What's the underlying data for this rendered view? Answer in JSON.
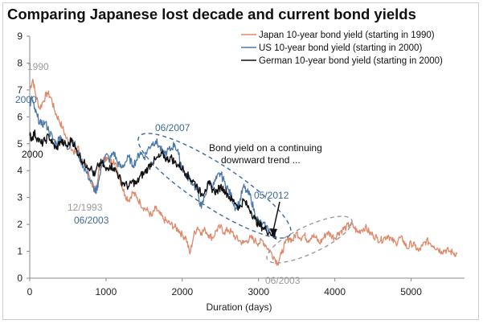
{
  "chart_data": {
    "type": "line",
    "title": "Comparing Japanese lost decade and current bond yields",
    "xlabel": "Duration (days)",
    "ylabel": "",
    "xlim": [
      0,
      5700
    ],
    "ylim": [
      0,
      9
    ],
    "x_ticks": [
      0,
      1000,
      2000,
      3000,
      4000,
      5000
    ],
    "y_ticks": [
      0,
      1,
      2,
      3,
      4,
      5,
      6,
      7,
      8,
      9
    ],
    "colors": {
      "japan": "#e0896a",
      "us": "#4a78aa",
      "german": "#111111",
      "annotation_blue": "#3e6a9a",
      "annotation_gray": "#9a9a9a"
    },
    "series": [
      {
        "name": "Japan 10-year bond yield  (starting in 1990)",
        "key": "japan",
        "points": [
          [
            0,
            7.0
          ],
          [
            40,
            7.4
          ],
          [
            80,
            6.8
          ],
          [
            130,
            6.3
          ],
          [
            180,
            6.6
          ],
          [
            230,
            6.9
          ],
          [
            280,
            6.7
          ],
          [
            330,
            6.2
          ],
          [
            380,
            5.9
          ],
          [
            430,
            5.6
          ],
          [
            480,
            5.2
          ],
          [
            530,
            5.0
          ],
          [
            580,
            4.6
          ],
          [
            630,
            4.9
          ],
          [
            680,
            4.4
          ],
          [
            730,
            4.2
          ],
          [
            780,
            3.8
          ],
          [
            830,
            3.4
          ],
          [
            880,
            3.3
          ],
          [
            900,
            3.9
          ],
          [
            950,
            4.3
          ],
          [
            1000,
            4.5
          ],
          [
            1050,
            4.3
          ],
          [
            1100,
            4.4
          ],
          [
            1150,
            4.0
          ],
          [
            1200,
            3.5
          ],
          [
            1250,
            3.1
          ],
          [
            1300,
            2.9
          ],
          [
            1350,
            3.2
          ],
          [
            1400,
            3.0
          ],
          [
            1450,
            2.8
          ],
          [
            1500,
            2.6
          ],
          [
            1550,
            2.5
          ],
          [
            1600,
            2.3
          ],
          [
            1650,
            2.6
          ],
          [
            1700,
            2.4
          ],
          [
            1750,
            2.2
          ],
          [
            1800,
            2.1
          ],
          [
            1850,
            2.0
          ],
          [
            1900,
            1.9
          ],
          [
            1950,
            1.8
          ],
          [
            2000,
            1.6
          ],
          [
            2050,
            1.5
          ],
          [
            2100,
            0.9
          ],
          [
            2150,
            1.6
          ],
          [
            2200,
            1.9
          ],
          [
            2250,
            1.7
          ],
          [
            2300,
            1.8
          ],
          [
            2350,
            1.6
          ],
          [
            2400,
            1.5
          ],
          [
            2450,
            1.8
          ],
          [
            2500,
            1.9
          ],
          [
            2550,
            1.7
          ],
          [
            2600,
            1.8
          ],
          [
            2650,
            1.7
          ],
          [
            2700,
            1.5
          ],
          [
            2750,
            1.4
          ],
          [
            2800,
            1.3
          ],
          [
            2850,
            1.4
          ],
          [
            2900,
            1.5
          ],
          [
            2950,
            1.4
          ],
          [
            3000,
            1.3
          ],
          [
            3050,
            1.4
          ],
          [
            3100,
            1.2
          ],
          [
            3150,
            1.0
          ],
          [
            3200,
            0.8
          ],
          [
            3250,
            0.55
          ],
          [
            3300,
            0.9
          ],
          [
            3350,
            1.3
          ],
          [
            3400,
            1.5
          ],
          [
            3450,
            1.4
          ],
          [
            3500,
            1.7
          ],
          [
            3550,
            1.5
          ],
          [
            3600,
            1.6
          ],
          [
            3650,
            1.4
          ],
          [
            3700,
            1.6
          ],
          [
            3750,
            1.5
          ],
          [
            3800,
            1.3
          ],
          [
            3850,
            1.5
          ],
          [
            3900,
            1.7
          ],
          [
            3950,
            1.6
          ],
          [
            4000,
            1.5
          ],
          [
            4050,
            1.7
          ],
          [
            4100,
            1.8
          ],
          [
            4150,
            1.9
          ],
          [
            4200,
            2.0
          ],
          [
            4250,
            1.9
          ],
          [
            4300,
            1.7
          ],
          [
            4350,
            1.8
          ],
          [
            4400,
            1.9
          ],
          [
            4450,
            1.7
          ],
          [
            4500,
            1.6
          ],
          [
            4550,
            1.5
          ],
          [
            4600,
            1.4
          ],
          [
            4650,
            1.5
          ],
          [
            4700,
            1.6
          ],
          [
            4750,
            1.4
          ],
          [
            4800,
            1.3
          ],
          [
            4850,
            1.5
          ],
          [
            4900,
            1.4
          ],
          [
            4950,
            1.1
          ],
          [
            5000,
            1.3
          ],
          [
            5050,
            1.2
          ],
          [
            5100,
            1.0
          ],
          [
            5150,
            1.2
          ],
          [
            5200,
            1.4
          ],
          [
            5250,
            1.3
          ],
          [
            5300,
            1.2
          ],
          [
            5350,
            1.1
          ],
          [
            5400,
            1.0
          ],
          [
            5450,
            1.05
          ],
          [
            5500,
            1.0
          ],
          [
            5550,
            0.95
          ],
          [
            5600,
            0.9
          ]
        ]
      },
      {
        "name": "US 10-year bond yield  (starting in 2000)",
        "key": "us",
        "points": [
          [
            0,
            6.4
          ],
          [
            30,
            6.7
          ],
          [
            60,
            6.3
          ],
          [
            100,
            6.0
          ],
          [
            150,
            5.7
          ],
          [
            200,
            5.8
          ],
          [
            250,
            5.5
          ],
          [
            300,
            5.2
          ],
          [
            350,
            5.0
          ],
          [
            400,
            5.3
          ],
          [
            450,
            5.0
          ],
          [
            500,
            4.8
          ],
          [
            550,
            5.2
          ],
          [
            600,
            4.9
          ],
          [
            650,
            4.5
          ],
          [
            700,
            4.2
          ],
          [
            750,
            3.9
          ],
          [
            800,
            3.6
          ],
          [
            850,
            3.3
          ],
          [
            870,
            3.15
          ],
          [
            900,
            3.6
          ],
          [
            950,
            4.2
          ],
          [
            1000,
            4.6
          ],
          [
            1050,
            4.4
          ],
          [
            1100,
            4.7
          ],
          [
            1150,
            4.3
          ],
          [
            1200,
            4.1
          ],
          [
            1250,
            4.3
          ],
          [
            1300,
            4.5
          ],
          [
            1350,
            4.2
          ],
          [
            1400,
            4.4
          ],
          [
            1450,
            4.7
          ],
          [
            1500,
            4.5
          ],
          [
            1550,
            4.8
          ],
          [
            1600,
            5.0
          ],
          [
            1650,
            5.1
          ],
          [
            1700,
            4.9
          ],
          [
            1750,
            4.6
          ],
          [
            1800,
            4.7
          ],
          [
            1850,
            4.8
          ],
          [
            1900,
            5.0
          ],
          [
            1950,
            4.6
          ],
          [
            2000,
            4.1
          ],
          [
            2050,
            3.8
          ],
          [
            2100,
            3.7
          ],
          [
            2150,
            3.5
          ],
          [
            2200,
            3.2
          ],
          [
            2250,
            2.6
          ],
          [
            2300,
            3.1
          ],
          [
            2350,
            3.6
          ],
          [
            2400,
            3.4
          ],
          [
            2450,
            3.7
          ],
          [
            2500,
            3.9
          ],
          [
            2550,
            3.6
          ],
          [
            2600,
            3.3
          ],
          [
            2650,
            3.0
          ],
          [
            2700,
            2.6
          ],
          [
            2750,
            2.8
          ],
          [
            2800,
            3.4
          ],
          [
            2850,
            3.2
          ],
          [
            2900,
            3.0
          ],
          [
            2950,
            2.4
          ],
          [
            3000,
            2.1
          ],
          [
            3050,
            2.0
          ],
          [
            3100,
            1.9
          ],
          [
            3150,
            1.8
          ],
          [
            3200,
            1.6
          ],
          [
            3230,
            1.75
          ]
        ]
      },
      {
        "name": "German 10-year bond yield  (starting in 2000)",
        "key": "german",
        "points": [
          [
            0,
            5.3
          ],
          [
            30,
            5.2
          ],
          [
            60,
            5.4
          ],
          [
            100,
            5.2
          ],
          [
            150,
            5.0
          ],
          [
            200,
            5.1
          ],
          [
            250,
            5.3
          ],
          [
            300,
            5.0
          ],
          [
            350,
            4.8
          ],
          [
            400,
            5.1
          ],
          [
            450,
            5.0
          ],
          [
            500,
            4.9
          ],
          [
            550,
            5.2
          ],
          [
            600,
            4.8
          ],
          [
            650,
            4.6
          ],
          [
            700,
            4.3
          ],
          [
            750,
            4.2
          ],
          [
            800,
            4.1
          ],
          [
            850,
            3.8
          ],
          [
            900,
            4.2
          ],
          [
            950,
            4.3
          ],
          [
            1000,
            4.0
          ],
          [
            1050,
            4.2
          ],
          [
            1100,
            4.1
          ],
          [
            1150,
            3.9
          ],
          [
            1200,
            3.6
          ],
          [
            1250,
            3.5
          ],
          [
            1300,
            3.4
          ],
          [
            1350,
            3.6
          ],
          [
            1400,
            3.5
          ],
          [
            1450,
            3.8
          ],
          [
            1500,
            3.9
          ],
          [
            1550,
            4.1
          ],
          [
            1600,
            4.3
          ],
          [
            1650,
            4.4
          ],
          [
            1700,
            4.5
          ],
          [
            1750,
            4.6
          ],
          [
            1800,
            4.4
          ],
          [
            1850,
            4.5
          ],
          [
            1900,
            4.3
          ],
          [
            1950,
            4.2
          ],
          [
            2000,
            4.1
          ],
          [
            2050,
            3.9
          ],
          [
            2100,
            3.7
          ],
          [
            2150,
            3.6
          ],
          [
            2200,
            3.4
          ],
          [
            2250,
            3.1
          ],
          [
            2300,
            3.3
          ],
          [
            2350,
            3.5
          ],
          [
            2400,
            3.3
          ],
          [
            2450,
            3.2
          ],
          [
            2500,
            3.4
          ],
          [
            2550,
            3.3
          ],
          [
            2600,
            3.1
          ],
          [
            2650,
            2.9
          ],
          [
            2700,
            2.8
          ],
          [
            2750,
            2.6
          ],
          [
            2800,
            2.9
          ],
          [
            2850,
            2.7
          ],
          [
            2900,
            2.5
          ],
          [
            2950,
            2.2
          ],
          [
            3000,
            2.0
          ],
          [
            3050,
            1.9
          ],
          [
            3100,
            1.8
          ],
          [
            3150,
            1.7
          ],
          [
            3200,
            1.6
          ],
          [
            3230,
            1.55
          ]
        ]
      }
    ],
    "annotations": [
      {
        "text": "1990",
        "color": "gray"
      },
      {
        "text": "2000",
        "color": "blue"
      },
      {
        "text": "2000",
        "color": "black"
      },
      {
        "text": "06/2007",
        "color": "blue"
      },
      {
        "text": "12/1993",
        "color": "gray"
      },
      {
        "text": "06/2003",
        "color": "blue"
      },
      {
        "text": "05/2012",
        "color": "blue"
      },
      {
        "text": "06/2003",
        "color": "gray"
      },
      {
        "text": "Bond yield on a continuing",
        "color": "black"
      },
      {
        "text": "downward  trend ...",
        "color": "black"
      }
    ]
  }
}
